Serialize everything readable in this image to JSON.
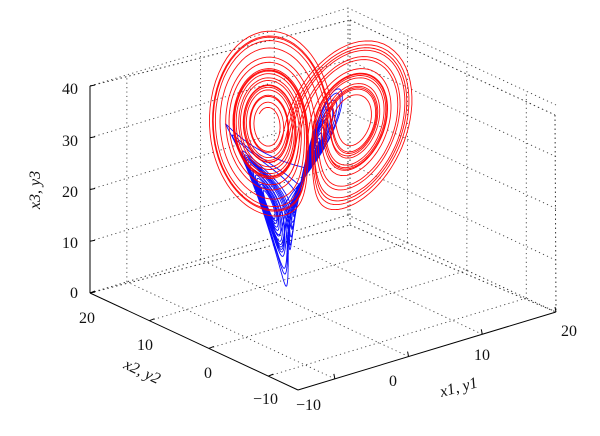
{
  "chart_data": {
    "type": "line",
    "view": "3d",
    "axes": {
      "x": {
        "label": "x1, y1",
        "ticks": [
          "−10",
          "0",
          "10",
          "20"
        ],
        "range": [
          -15,
          20
        ]
      },
      "y": {
        "label": "x2, y2",
        "ticks": [
          "−10",
          "0",
          "10",
          "20"
        ],
        "range": [
          -15,
          20
        ]
      },
      "z": {
        "label": "x3, y3",
        "ticks": [
          "0",
          "10",
          "20",
          "30",
          "40"
        ],
        "range": [
          0,
          40
        ]
      }
    },
    "grid": true,
    "series": [
      {
        "color": "#ff0000",
        "description": "red trajectory forming a double-scroll butterfly attractor"
      },
      {
        "color": "#0000ff",
        "description": "blue trajectory forming a double-scroll butterfly attractor"
      }
    ]
  }
}
